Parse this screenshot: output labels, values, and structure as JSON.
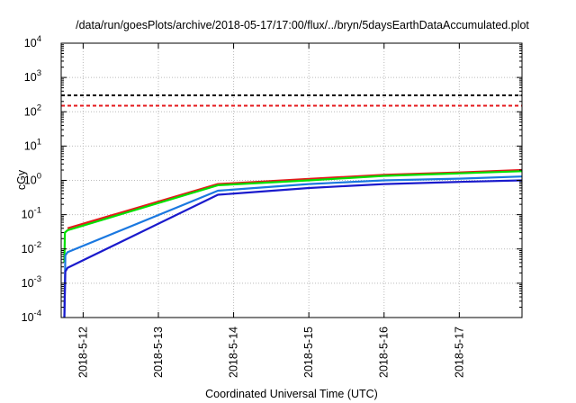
{
  "chart_data": {
    "type": "line",
    "title": "/data/run/goesPlots/archive/2018-05-17/17:00/flux/../bryn/5daysEarthDataAccumulated.plot",
    "xlabel": "Coordinated Universal Time (UTC)",
    "ylabel": "cGy",
    "yscale": "log",
    "ylim": [
      0.0001,
      10000
    ],
    "yticks": [
      {
        "value": 0.0001,
        "mant": "10",
        "exp": "-4"
      },
      {
        "value": 0.001,
        "mant": "10",
        "exp": "-3"
      },
      {
        "value": 0.01,
        "mant": "10",
        "exp": "-2"
      },
      {
        "value": 0.1,
        "mant": "10",
        "exp": "-1"
      },
      {
        "value": 1,
        "mant": "10",
        "exp": "0"
      },
      {
        "value": 10,
        "mant": "10",
        "exp": "1"
      },
      {
        "value": 100,
        "mant": "10",
        "exp": "2"
      },
      {
        "value": 1000,
        "mant": "10",
        "exp": "3"
      },
      {
        "value": 10000,
        "mant": "10",
        "exp": "4"
      }
    ],
    "xlim": [
      "2018-05-11 17:00",
      "2018-05-17 20:00"
    ],
    "xticks": [
      "2018-5-12",
      "2018-5-13",
      "2018-5-14",
      "2018-5-15",
      "2018-5-16",
      "2018-5-17"
    ],
    "grid": true,
    "reference_lines": [
      {
        "y": 300,
        "color": "#000000",
        "style": "dashed"
      },
      {
        "y": 150,
        "color": "#e41a1c",
        "style": "dashed"
      }
    ],
    "series": [
      {
        "color": "#e41a1c",
        "points": [
          [
            "2018-05-11 19:00",
            0.04
          ],
          [
            "2018-05-13 19:00",
            0.78
          ],
          [
            "2018-05-15 00:00",
            1.1
          ],
          [
            "2018-05-16 00:00",
            1.45
          ],
          [
            "2018-05-17 00:00",
            1.7
          ],
          [
            "2018-05-17 20:00",
            2.0
          ]
        ]
      },
      {
        "color": "#00e000",
        "points": [
          [
            "2018-05-11 18:00",
            0.004
          ],
          [
            "2018-05-11 18:10",
            0.03
          ],
          [
            "2018-05-11 19:00",
            0.035
          ],
          [
            "2018-05-13 19:00",
            0.72
          ],
          [
            "2018-05-15 00:00",
            1.0
          ],
          [
            "2018-05-16 00:00",
            1.35
          ],
          [
            "2018-05-17 00:00",
            1.6
          ],
          [
            "2018-05-17 20:00",
            1.85
          ]
        ]
      },
      {
        "color": "#1a78e0",
        "points": [
          [
            "2018-05-11 18:00",
            0.0001
          ],
          [
            "2018-05-11 18:20",
            0.0065
          ],
          [
            "2018-05-11 19:00",
            0.008
          ],
          [
            "2018-05-13 19:00",
            0.5
          ],
          [
            "2018-05-15 00:00",
            0.78
          ],
          [
            "2018-05-16 00:00",
            1.0
          ],
          [
            "2018-05-17 00:00",
            1.12
          ],
          [
            "2018-05-17 20:00",
            1.3
          ]
        ]
      },
      {
        "color": "#1a1acc",
        "points": [
          [
            "2018-05-11 18:00",
            0.0001
          ],
          [
            "2018-05-11 18:20",
            0.0022
          ],
          [
            "2018-05-11 19:00",
            0.0028
          ],
          [
            "2018-05-13 19:00",
            0.38
          ],
          [
            "2018-05-15 00:00",
            0.6
          ],
          [
            "2018-05-16 00:00",
            0.78
          ],
          [
            "2018-05-17 00:00",
            0.9
          ],
          [
            "2018-05-17 20:00",
            1.0
          ]
        ]
      }
    ]
  }
}
